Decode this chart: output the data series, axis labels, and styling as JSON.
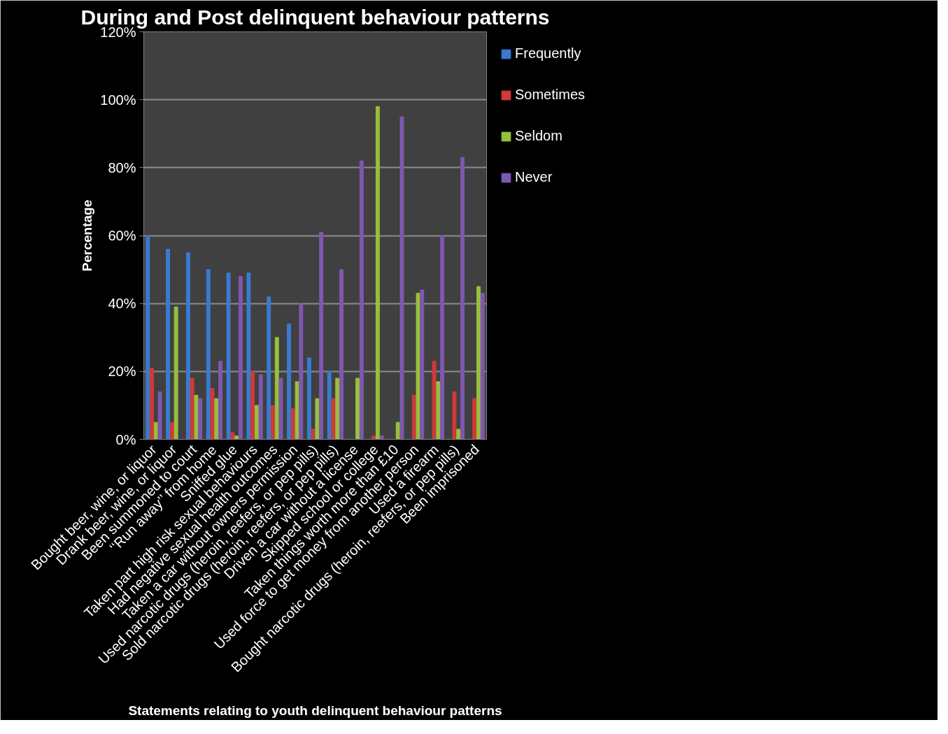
{
  "chart_data": {
    "type": "bar",
    "title": "During and Post delinquent behaviour patterns",
    "xlabel": "Statements relating to youth delinquent behaviour patterns",
    "ylabel": "Percentage",
    "categories": [
      "Bought beer, wine, or liquor",
      "Drank beer, wine, or liquor",
      "Been summoned to court",
      "‘‘Run away’’ from home",
      "Sniffed glue",
      "Taken part high risk sexual behaviours",
      "Had negative sexual health outcomes",
      "Taken a car without owners permission",
      "Used narcotic drugs (heroin, reefers, or pep pills)",
      "Sold narcotic drugs (heroin, reefers, or pep pills)",
      "Driven a car without a license",
      "Skipped school or college",
      "Taken things worth more than £10",
      "Used force to get money from another person",
      "Used a firearm",
      "Bought narcotic drugs (heroin, reefers, or pep pills)",
      "Been imprisoned"
    ],
    "series": [
      {
        "name": "Frequently",
        "color": "#3a7bd0",
        "values": [
          60,
          56,
          55,
          50,
          49,
          49,
          42,
          34,
          24,
          20,
          0,
          0,
          0,
          0,
          0,
          0,
          0
        ]
      },
      {
        "name": "Sometimes",
        "color": "#d0393a",
        "values": [
          21,
          5,
          18,
          15,
          2,
          20,
          10,
          9,
          3,
          12,
          0,
          1,
          0,
          13,
          23,
          14,
          12
        ]
      },
      {
        "name": "Seldom",
        "color": "#98c03c",
        "values": [
          5,
          39,
          13,
          12,
          1,
          10,
          30,
          17,
          12,
          18,
          18,
          98,
          5,
          43,
          17,
          3,
          45
        ]
      },
      {
        "name": "Never",
        "color": "#7e58b0",
        "values": [
          14,
          0,
          12,
          23,
          48,
          19,
          18,
          40,
          61,
          50,
          82,
          1,
          95,
          44,
          60,
          83,
          43
        ]
      }
    ],
    "ylim": [
      0,
      120
    ],
    "yticks": [
      {
        "value": 0,
        "label": "0%"
      },
      {
        "value": 20,
        "label": "20%"
      },
      {
        "value": 40,
        "label": "40%"
      },
      {
        "value": 60,
        "label": "60%"
      },
      {
        "value": 80,
        "label": "80%"
      },
      {
        "value": 100,
        "label": "100%"
      },
      {
        "value": 120,
        "label": "120%"
      }
    ],
    "grid": "y",
    "legend": "right"
  }
}
